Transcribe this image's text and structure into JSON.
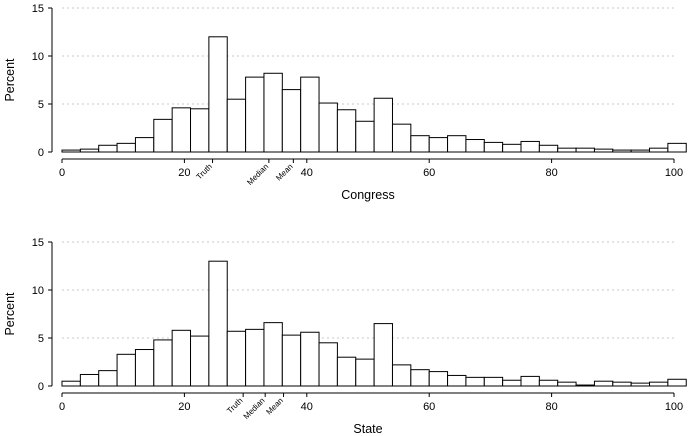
{
  "chart_data": [
    {
      "type": "bar",
      "xlabel": "Congress",
      "ylabel": "Percent",
      "xlim": [
        0,
        100
      ],
      "ylim": [
        0,
        15
      ],
      "xticks": [
        "0",
        "20",
        "40",
        "60",
        "80",
        "100"
      ],
      "yticks": [
        "0",
        "5",
        "10",
        "15"
      ],
      "grid": true,
      "bin_width": 3,
      "x": [
        0,
        3,
        6,
        9,
        12,
        15,
        18,
        21,
        24,
        27,
        30,
        33,
        36,
        39,
        42,
        45,
        48,
        51,
        54,
        57,
        60,
        63,
        66,
        69,
        72,
        75,
        78,
        81,
        84,
        87,
        90,
        93,
        96,
        99
      ],
      "values": [
        0.2,
        0.3,
        0.7,
        0.9,
        1.5,
        3.4,
        4.6,
        4.5,
        12.0,
        5.5,
        7.8,
        8.2,
        6.5,
        7.8,
        5.1,
        4.4,
        3.2,
        5.6,
        2.9,
        1.7,
        1.5,
        1.7,
        1.3,
        1.0,
        0.8,
        1.1,
        0.7,
        0.4,
        0.4,
        0.3,
        0.2,
        0.2,
        0.4,
        0.9
      ],
      "annotations": [
        {
          "label": "Truth",
          "x": 24.6
        },
        {
          "label": "Median",
          "x": 33.8
        },
        {
          "label": "Mean",
          "x": 37.8
        }
      ]
    },
    {
      "type": "bar",
      "xlabel": "State",
      "ylabel": "Percent",
      "xlim": [
        0,
        100
      ],
      "ylim": [
        0,
        15
      ],
      "xticks": [
        "0",
        "20",
        "40",
        "60",
        "80",
        "100"
      ],
      "yticks": [
        "0",
        "5",
        "10",
        "15"
      ],
      "grid": true,
      "bin_width": 3,
      "x": [
        0,
        3,
        6,
        9,
        12,
        15,
        18,
        21,
        24,
        27,
        30,
        33,
        36,
        39,
        42,
        45,
        48,
        51,
        54,
        57,
        60,
        63,
        66,
        69,
        72,
        75,
        78,
        81,
        84,
        87,
        90,
        93,
        96,
        99
      ],
      "values": [
        0.5,
        1.2,
        1.6,
        3.3,
        3.8,
        4.8,
        5.8,
        5.2,
        13.0,
        5.7,
        5.9,
        6.6,
        5.3,
        5.6,
        4.5,
        3.0,
        2.8,
        6.5,
        2.2,
        1.7,
        1.5,
        1.1,
        0.9,
        0.9,
        0.6,
        1.0,
        0.6,
        0.4,
        0.1,
        0.5,
        0.4,
        0.3,
        0.4,
        0.7
      ],
      "annotations": [
        {
          "label": "Truth",
          "x": 29.6
        },
        {
          "label": "Median",
          "x": 33.2
        },
        {
          "label": "Mean",
          "x": 36.2
        }
      ]
    }
  ]
}
